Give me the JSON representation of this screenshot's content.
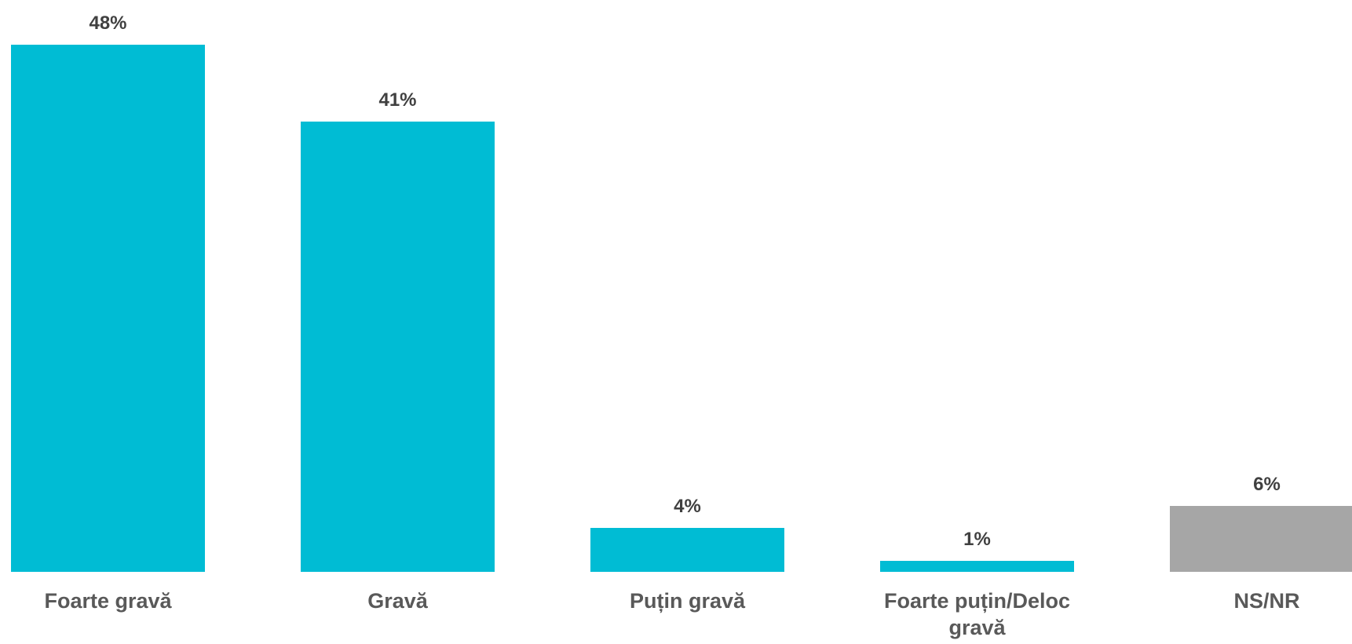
{
  "chart_data": {
    "type": "bar",
    "categories": [
      "Foarte gravă",
      "Gravă",
      "Puțin gravă",
      "Foarte puțin/Deloc gravă",
      "NS/NR"
    ],
    "values": [
      48,
      41,
      4,
      1,
      6
    ],
    "data_labels": [
      "48%",
      "41%",
      "4%",
      "1%",
      "6%"
    ],
    "unit": "%",
    "title": "",
    "xlabel": "",
    "ylabel": "",
    "ylim": [
      0,
      48
    ],
    "grid": false,
    "legend": "none",
    "colors": [
      "#00BCD4",
      "#00BCD4",
      "#00BCD4",
      "#00BCD4",
      "#A6A6A6"
    ]
  }
}
